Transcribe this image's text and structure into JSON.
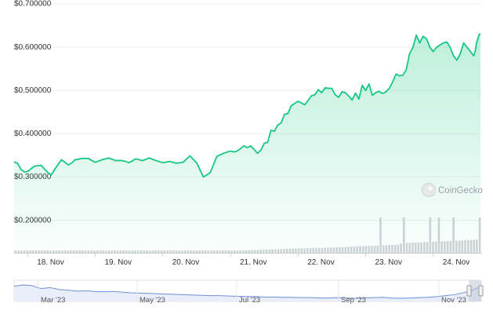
{
  "chart_data": {
    "type": "area",
    "watermark": "CoinGecko",
    "y_ticks": [
      "$0.700000",
      "$0.600000",
      "$0.500000",
      "$0.400000",
      "$0.300000",
      "$0.200000"
    ],
    "y_tick_values": [
      0.7,
      0.6,
      0.5,
      0.4,
      0.3,
      0.2
    ],
    "ylim": [
      0.125,
      0.7
    ],
    "x_ticks": [
      "18. Nov",
      "19. Nov",
      "20. Nov",
      "21. Nov",
      "22. Nov",
      "23. Nov",
      "24. Nov"
    ],
    "x_tick_days": [
      18,
      19,
      20,
      21,
      22,
      23,
      24
    ],
    "xlim_days": [
      17.8,
      24.71
    ],
    "grid": true,
    "line_color": "#16c784",
    "fill_color": "#16c784",
    "volume_color": "#d0d3d8",
    "series": [
      {
        "x_days": [
          17.8,
          17.85,
          17.9,
          17.95,
          18.0,
          18.1,
          18.2,
          18.3,
          18.35,
          18.4,
          18.5,
          18.6,
          18.65,
          18.7,
          18.75,
          18.8,
          18.9,
          18.95,
          19.0,
          19.1,
          19.2,
          19.3,
          19.4,
          19.45,
          19.5,
          19.6,
          19.7,
          19.8,
          19.9,
          20.0,
          20.1,
          20.2,
          20.3,
          20.4,
          20.5,
          20.6,
          20.7,
          20.8,
          20.9,
          21.0,
          21.05,
          21.1,
          21.2,
          21.25,
          21.3,
          21.4,
          21.45,
          21.5,
          21.55,
          21.6,
          21.65,
          21.7,
          21.75,
          21.8,
          21.85,
          21.9,
          22.0,
          22.1,
          22.2,
          22.25,
          22.3,
          22.35,
          22.4,
          22.45,
          22.5,
          22.55,
          22.6,
          22.65,
          22.7,
          22.75,
          22.8,
          22.85,
          22.9,
          22.95,
          23.0,
          23.05,
          23.1,
          23.15,
          23.2,
          23.25,
          23.3,
          23.35,
          23.4,
          23.45,
          23.5,
          23.55,
          23.6,
          23.65,
          23.7,
          23.75,
          23.8,
          23.85,
          23.9,
          23.95,
          24.0,
          24.05,
          24.1,
          24.15,
          24.2,
          24.25,
          24.3,
          24.35,
          24.4,
          24.45,
          24.5,
          24.55,
          24.6,
          24.62,
          24.64,
          24.66,
          24.68,
          24.7
        ],
        "values": [
          0.335,
          0.332,
          0.318,
          0.312,
          0.313,
          0.325,
          0.327,
          0.31,
          0.305,
          0.318,
          0.34,
          0.328,
          0.332,
          0.34,
          0.341,
          0.343,
          0.343,
          0.338,
          0.334,
          0.34,
          0.344,
          0.338,
          0.338,
          0.336,
          0.333,
          0.342,
          0.338,
          0.344,
          0.338,
          0.333,
          0.336,
          0.332,
          0.334,
          0.349,
          0.333,
          0.3,
          0.31,
          0.348,
          0.355,
          0.36,
          0.358,
          0.36,
          0.372,
          0.368,
          0.372,
          0.355,
          0.362,
          0.378,
          0.38,
          0.408,
          0.406,
          0.42,
          0.425,
          0.445,
          0.447,
          0.465,
          0.475,
          0.467,
          0.488,
          0.49,
          0.502,
          0.495,
          0.506,
          0.505,
          0.505,
          0.49,
          0.484,
          0.497,
          0.495,
          0.487,
          0.478,
          0.494,
          0.48,
          0.512,
          0.5,
          0.515,
          0.489,
          0.495,
          0.498,
          0.493,
          0.497,
          0.505,
          0.52,
          0.538,
          0.534,
          0.535,
          0.548,
          0.585,
          0.6,
          0.628,
          0.61,
          0.625,
          0.62,
          0.6,
          0.59,
          0.6,
          0.605,
          0.61,
          0.612,
          0.6,
          0.58,
          0.57,
          0.585,
          0.61,
          0.6,
          0.59,
          0.58,
          0.59,
          0.61,
          0.62,
          0.63,
          0.63
        ]
      }
    ],
    "navigator": {
      "labels": [
        "Mar '23",
        "May '23",
        "Jul '23",
        "Sep '23",
        "Nov '23"
      ],
      "series_color": "#6e8fd8",
      "handle_color": "#bfc8d6",
      "values": [
        0.62,
        0.66,
        0.64,
        0.55,
        0.58,
        0.52,
        0.5,
        0.47,
        0.48,
        0.46,
        0.45,
        0.46,
        0.44,
        0.42,
        0.41,
        0.4,
        0.39,
        0.38,
        0.37,
        0.36,
        0.35,
        0.34,
        0.33,
        0.33,
        0.32,
        0.31,
        0.3,
        0.3,
        0.29,
        0.29,
        0.28,
        0.28,
        0.27,
        0.27,
        0.26,
        0.26,
        0.27,
        0.26,
        0.25,
        0.26,
        0.27,
        0.28,
        0.26,
        0.25,
        0.26,
        0.27,
        0.28,
        0.3,
        0.33,
        0.36,
        0.42,
        0.5,
        0.62
      ]
    }
  }
}
